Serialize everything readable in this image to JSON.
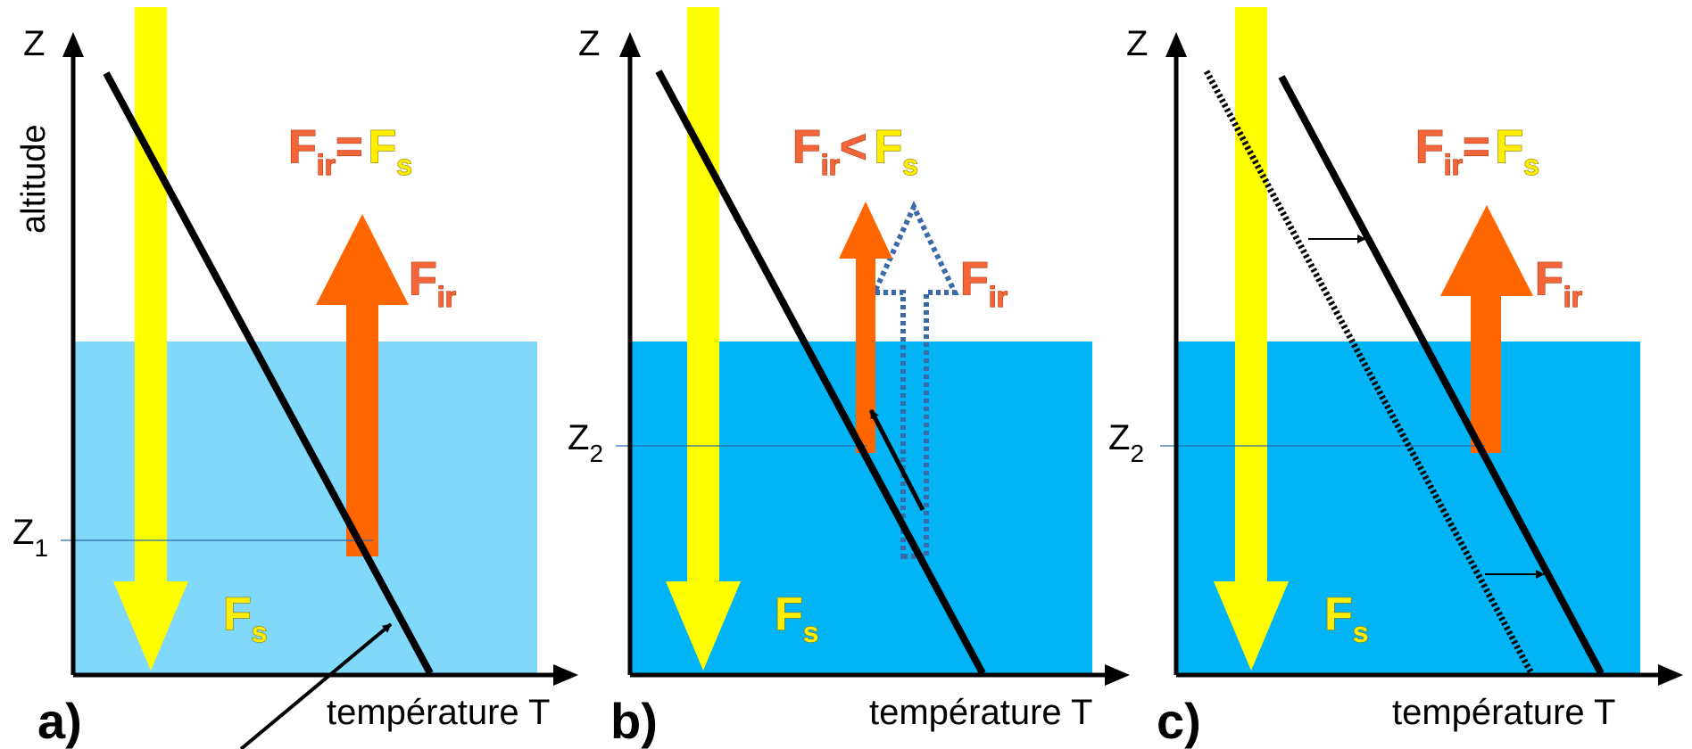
{
  "panels": [
    {
      "letter": "a)",
      "z_label": "Z",
      "x_label": "température T",
      "y_label": "altitude",
      "level_label": {
        "main": "Z",
        "sub": "1"
      },
      "top_formula": {
        "ir_main": "F",
        "ir_sub": "ir",
        "op": "=",
        "s_main": "F",
        "s_sub": "s"
      },
      "fir_label": {
        "main": "F",
        "sub": "ir"
      },
      "fs_label": {
        "main": "F",
        "sub": "s"
      },
      "water_color": "#80d8fa"
    },
    {
      "letter": "b)",
      "z_label": "Z",
      "x_label": "température T",
      "level_label": {
        "main": "Z",
        "sub": "2"
      },
      "top_formula": {
        "ir_main": "F",
        "ir_sub": "ir",
        "op": "<",
        "s_main": "F",
        "s_sub": "s"
      },
      "fir_label": {
        "main": "F",
        "sub": "ir"
      },
      "fs_label": {
        "main": "F",
        "sub": "s"
      },
      "water_color": "#00b4f5"
    },
    {
      "letter": "c)",
      "z_label": "Z",
      "x_label": "température T",
      "level_label": {
        "main": "Z",
        "sub": "2"
      },
      "top_formula": {
        "ir_main": "F",
        "ir_sub": "ir",
        "op": "=",
        "s_main": "F",
        "s_sub": "s"
      },
      "fir_label": {
        "main": "F",
        "sub": "ir"
      },
      "fs_label": {
        "main": "F",
        "sub": "s"
      },
      "water_color": "#00b4f5"
    }
  ],
  "colors": {
    "solar_arrow": "#ffff00",
    "ir_arrow": "#ff6600",
    "ir_dotted": "#3a6aa8",
    "axis": "#000000",
    "level_line": "#2a6ab0"
  }
}
